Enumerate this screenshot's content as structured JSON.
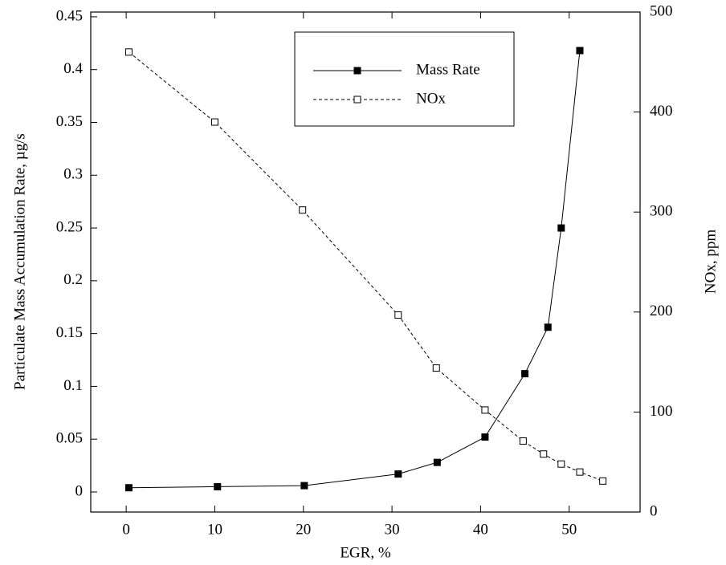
{
  "chart_data": {
    "type": "line",
    "xlabel": "EGR, %",
    "ylabel": "Particulate Mass Accumulation Rate, µg/s",
    "y2label": "NOx, ppm",
    "xlim": [
      -4,
      58
    ],
    "xticks": [
      0,
      10,
      20,
      30,
      40,
      50
    ],
    "ylim": [
      -0.019,
      0.4545
    ],
    "yticks": [
      0,
      0.05,
      0.1,
      0.15,
      0.2,
      0.25,
      0.3,
      0.35,
      0.4,
      0.45
    ],
    "y2lim": [
      0,
      500
    ],
    "y2ticks": [
      0,
      100,
      200,
      300,
      400,
      500
    ],
    "legend": "top-right",
    "series": [
      {
        "name": "Mass Rate",
        "color": "#000000",
        "marker": "filled-square",
        "dash": false,
        "x": [
          0.3,
          10.3,
          20.1,
          30.7,
          35.1,
          40.5,
          45.0,
          47.6,
          49.1,
          51.2
        ],
        "values": [
          0.004,
          0.005,
          0.006,
          0.017,
          0.028,
          0.052,
          0.112,
          0.156,
          0.25,
          0.418
        ]
      },
      {
        "name": "NOx",
        "color": "#000000",
        "marker": "open-square",
        "dash": true,
        "axis": "y2",
        "x": [
          0.3,
          10.0,
          19.9,
          30.7,
          35.0,
          40.5,
          44.8,
          47.1,
          49.1,
          51.2,
          53.8
        ],
        "values": [
          460,
          390,
          302,
          197,
          144,
          102,
          71,
          58,
          48,
          40,
          31
        ]
      }
    ]
  }
}
